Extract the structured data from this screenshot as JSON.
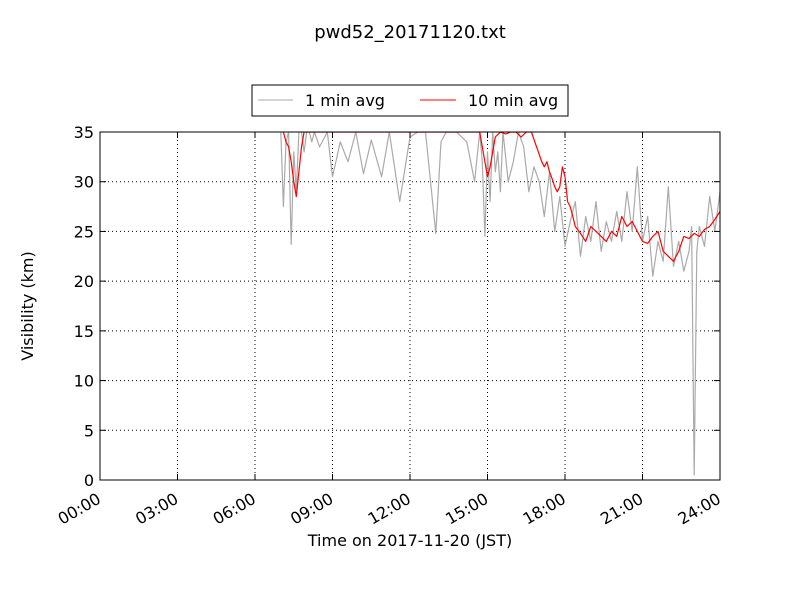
{
  "chart_data": {
    "type": "line",
    "title": "pwd52_20171120.txt",
    "xlabel": "Time on 2017-11-20 (JST)",
    "ylabel": "Visibility (km)",
    "xlim": [
      0,
      24
    ],
    "ylim": [
      0,
      35
    ],
    "x_unit": "hours since 00:00",
    "x_ticks": [
      0,
      3,
      6,
      9,
      12,
      15,
      18,
      21,
      24
    ],
    "x_tick_labels": [
      "00:00",
      "03:00",
      "06:00",
      "09:00",
      "12:00",
      "15:00",
      "18:00",
      "21:00",
      "24:00"
    ],
    "y_ticks": [
      0,
      5,
      10,
      15,
      20,
      25,
      30,
      35
    ],
    "y_tick_labels": [
      "0",
      "5",
      "10",
      "15",
      "20",
      "25",
      "30",
      "35"
    ],
    "grid": true,
    "legend_position": "top-center, outside plot",
    "series": [
      {
        "name": "1 min avg",
        "color": "#aaaaaa",
        "x": [
          7.0,
          7.1,
          7.2,
          7.3,
          7.4,
          7.5,
          7.6,
          7.7,
          7.8,
          7.9,
          8.0,
          8.1,
          8.2,
          8.3,
          8.5,
          8.8,
          9.0,
          9.3,
          9.6,
          9.9,
          10.2,
          10.5,
          10.9,
          11.2,
          11.6,
          12.0,
          12.3,
          12.6,
          13.0,
          13.2,
          13.4,
          13.8,
          14.2,
          14.5,
          14.7,
          14.8,
          14.9,
          15.0,
          15.1,
          15.2,
          15.3,
          15.4,
          15.5,
          15.6,
          15.8,
          16.0,
          16.2,
          16.4,
          16.6,
          16.8,
          17.0,
          17.2,
          17.4,
          17.6,
          17.8,
          18.0,
          18.2,
          18.4,
          18.6,
          18.8,
          19.0,
          19.2,
          19.4,
          19.6,
          19.8,
          20.0,
          20.2,
          20.4,
          20.6,
          20.8,
          21.0,
          21.2,
          21.4,
          21.6,
          21.8,
          22.0,
          22.2,
          22.4,
          22.6,
          22.8,
          22.9,
          23.0,
          23.1,
          23.2,
          23.4,
          23.6,
          23.8,
          24.0
        ],
        "y": [
          35,
          27.5,
          34,
          35,
          23.7,
          33,
          29,
          35,
          35,
          33,
          35,
          35,
          34,
          35,
          33.5,
          35,
          30.5,
          34,
          32,
          35,
          30.8,
          34.2,
          30.5,
          35,
          28,
          34.5,
          35,
          35,
          24.8,
          34,
          35,
          35,
          34,
          30,
          35,
          32,
          24.5,
          33,
          28,
          35,
          31,
          33,
          29,
          35,
          30,
          32,
          35,
          33.5,
          29,
          31.5,
          30,
          26.5,
          31,
          25,
          28.5,
          23.5,
          26,
          28,
          22.5,
          26.5,
          24,
          28,
          23,
          26,
          24,
          27,
          24,
          29,
          25,
          31.5,
          24,
          26.5,
          20.5,
          24,
          22,
          29.5,
          21.5,
          24,
          21,
          23,
          25.5,
          0.5,
          23,
          25.5,
          23.5,
          28.5,
          25,
          29
        ]
      },
      {
        "name": "10 min avg",
        "color": "#ff0000",
        "x": [
          7.1,
          7.2,
          7.3,
          7.4,
          7.5,
          7.6,
          7.7,
          7.8,
          7.9,
          8.0,
          8.1,
          14.7,
          14.8,
          14.9,
          15.0,
          15.1,
          15.2,
          15.3,
          15.5,
          15.7,
          15.9,
          16.1,
          16.3,
          16.5,
          16.7,
          16.9,
          17.1,
          17.2,
          17.3,
          17.4,
          17.5,
          17.6,
          17.7,
          17.8,
          17.9,
          18.0,
          18.1,
          18.2,
          18.3,
          18.4,
          18.6,
          18.8,
          19.0,
          19.2,
          19.4,
          19.6,
          19.8,
          20.0,
          20.2,
          20.4,
          20.6,
          20.8,
          21.0,
          21.2,
          21.4,
          21.6,
          21.8,
          22.0,
          22.2,
          22.4,
          22.6,
          22.8,
          23.0,
          23.2,
          23.4,
          23.6,
          23.8,
          24.0
        ],
        "y": [
          35,
          34,
          33.5,
          32,
          30,
          28.5,
          31,
          33.5,
          35,
          35,
          35,
          35,
          33.5,
          32,
          30.5,
          31.5,
          33,
          34.5,
          35,
          34.8,
          35,
          35,
          34.5,
          35,
          35,
          33.5,
          32,
          31.5,
          32,
          31,
          30.3,
          29.5,
          29,
          29.5,
          31.5,
          30.5,
          28,
          27.5,
          26.5,
          25.5,
          24.8,
          24,
          25.5,
          25,
          24.5,
          24,
          25,
          24.5,
          26.5,
          25.5,
          26,
          25,
          24,
          23.8,
          24.5,
          25,
          23,
          22.5,
          22,
          23,
          24.5,
          24.3,
          24.8,
          24.5,
          25.2,
          25.5,
          26.2,
          27
        ]
      }
    ]
  }
}
